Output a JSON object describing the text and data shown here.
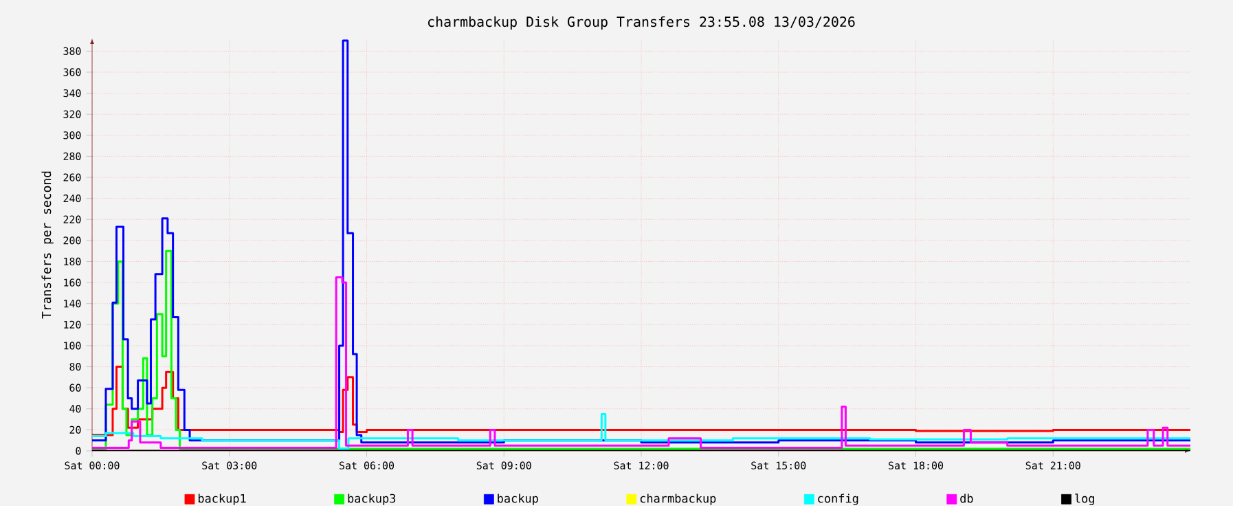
{
  "chart_data": {
    "type": "step",
    "title": "charmbackup Disk Group Transfers 23:55.08 13/03/2026",
    "ylabel": "Transfers per second",
    "xlim": [
      "2026-03-13T00:00",
      "2026-03-14T00:00"
    ],
    "ylim": [
      0,
      392
    ],
    "xticks": [
      {
        "value": "2026-03-13T00:00",
        "label": "Sat 00:00"
      },
      {
        "value": "2026-03-13T03:00",
        "label": "Sat 03:00"
      },
      {
        "value": "2026-03-13T06:00",
        "label": "Sat 06:00"
      },
      {
        "value": "2026-03-13T09:00",
        "label": "Sat 09:00"
      },
      {
        "value": "2026-03-13T12:00",
        "label": "Sat 12:00"
      },
      {
        "value": "2026-03-13T15:00",
        "label": "Sat 15:00"
      },
      {
        "value": "2026-03-13T18:00",
        "label": "Sat 18:00"
      },
      {
        "value": "2026-03-13T21:00",
        "label": "Sat 21:00"
      }
    ],
    "yticks": [
      0,
      20,
      40,
      60,
      80,
      100,
      120,
      140,
      160,
      180,
      200,
      220,
      240,
      260,
      280,
      300,
      320,
      340,
      360,
      380
    ],
    "grid": true,
    "legend": "bottom",
    "marker": "none",
    "line_style": "solid",
    "series": [
      {
        "name": "backup1",
        "color": "#ff0000",
        "x": [
          "2026-03-13T00:00",
          "2026-03-13T00:27",
          "2026-03-13T00:32",
          "2026-03-13T00:40",
          "2026-03-13T00:47",
          "2026-03-13T01:00",
          "2026-03-13T01:19",
          "2026-03-13T01:32",
          "2026-03-13T01:37",
          "2026-03-13T01:46",
          "2026-03-13T01:53",
          "2026-03-13T05:24",
          "2026-03-13T05:29",
          "2026-03-13T05:35",
          "2026-03-13T05:42",
          "2026-03-13T05:47",
          "2026-03-13T06:00",
          "2026-03-13T09:00",
          "2026-03-13T12:00",
          "2026-03-13T15:00",
          "2026-03-13T18:00",
          "2026-03-13T21:00",
          "2026-03-14T00:00"
        ],
        "values": [
          15,
          40,
          80,
          40,
          22,
          30,
          40,
          60,
          75,
          50,
          20,
          18,
          58,
          70,
          25,
          18,
          20,
          20,
          20,
          20,
          19,
          20,
          20
        ]
      },
      {
        "name": "backup3",
        "color": "#00ff00",
        "x": [
          "2026-03-13T00:00",
          "2026-03-13T00:18",
          "2026-03-13T00:27",
          "2026-03-13T00:34",
          "2026-03-13T00:40",
          "2026-03-13T00:45",
          "2026-03-13T00:52",
          "2026-03-13T01:00",
          "2026-03-13T01:07",
          "2026-03-13T01:12",
          "2026-03-13T01:19",
          "2026-03-13T01:25",
          "2026-03-13T01:32",
          "2026-03-13T01:37",
          "2026-03-13T01:44",
          "2026-03-13T01:50",
          "2026-03-13T01:55",
          "2026-03-14T00:00"
        ],
        "values": [
          2,
          44,
          140,
          180,
          40,
          15,
          30,
          40,
          88,
          15,
          50,
          130,
          90,
          190,
          50,
          20,
          2,
          2
        ]
      },
      {
        "name": "backup",
        "color": "#0000ff",
        "x": [
          "2026-03-13T00:00",
          "2026-03-13T00:18",
          "2026-03-13T00:27",
          "2026-03-13T00:32",
          "2026-03-13T00:41",
          "2026-03-13T00:47",
          "2026-03-13T00:52",
          "2026-03-13T01:00",
          "2026-03-13T01:12",
          "2026-03-13T01:17",
          "2026-03-13T01:23",
          "2026-03-13T01:32",
          "2026-03-13T01:39",
          "2026-03-13T01:46",
          "2026-03-13T01:53",
          "2026-03-13T02:01",
          "2026-03-13T02:08",
          "2026-03-13T05:24",
          "2026-03-13T05:29",
          "2026-03-13T05:35",
          "2026-03-13T05:42",
          "2026-03-13T05:47",
          "2026-03-13T05:53",
          "2026-03-13T09:00",
          "2026-03-13T12:00",
          "2026-03-13T15:00",
          "2026-03-13T18:00",
          "2026-03-13T21:00",
          "2026-03-14T00:00"
        ],
        "values": [
          10,
          59,
          141,
          213,
          106,
          50,
          40,
          67,
          45,
          125,
          168,
          221,
          207,
          127,
          58,
          20,
          10,
          100,
          390,
          207,
          92,
          15,
          8,
          10,
          8,
          10,
          8,
          10,
          10
        ]
      },
      {
        "name": "charmbackup",
        "color": "#ffff00"
      },
      {
        "name": "config",
        "color": "#00ffff",
        "x": [
          "2026-03-13T00:00",
          "2026-03-13T00:18",
          "2026-03-13T00:54",
          "2026-03-13T01:30",
          "2026-03-13T02:24",
          "2026-03-13T05:24",
          "2026-03-13T05:36",
          "2026-03-13T08:00",
          "2026-03-13T11:08",
          "2026-03-13T11:13",
          "2026-03-13T14:00",
          "2026-03-13T17:00",
          "2026-03-13T20:00",
          "2026-03-14T00:00"
        ],
        "values": [
          14,
          17,
          14,
          12,
          10,
          2,
          12,
          10,
          35,
          10,
          12,
          11,
          12,
          12
        ]
      },
      {
        "name": "db",
        "color": "#ff00ff",
        "x": [
          "2026-03-13T00:00",
          "2026-03-13T00:48",
          "2026-03-13T00:52",
          "2026-03-13T01:03",
          "2026-03-13T01:30",
          "2026-03-13T05:20",
          "2026-03-13T05:28",
          "2026-03-13T05:33",
          "2026-03-13T06:54",
          "2026-03-13T07:00",
          "2026-03-13T08:42",
          "2026-03-13T08:48",
          "2026-03-13T12:36",
          "2026-03-13T13:18",
          "2026-03-13T16:23",
          "2026-03-13T16:28",
          "2026-03-13T19:03",
          "2026-03-13T19:12",
          "2026-03-13T20:00",
          "2026-03-13T23:04",
          "2026-03-13T23:12",
          "2026-03-13T23:24",
          "2026-03-13T23:30",
          "2026-03-14T00:00"
        ],
        "values": [
          3,
          10,
          28,
          8,
          3,
          165,
          160,
          5,
          20,
          5,
          20,
          5,
          12,
          3,
          42,
          5,
          20,
          8,
          5,
          20,
          5,
          22,
          5,
          5
        ]
      },
      {
        "name": "log",
        "color": "#000000",
        "x": [
          "2026-03-13T00:00",
          "2026-03-14T00:00"
        ],
        "values": [
          0,
          0
        ]
      }
    ]
  }
}
